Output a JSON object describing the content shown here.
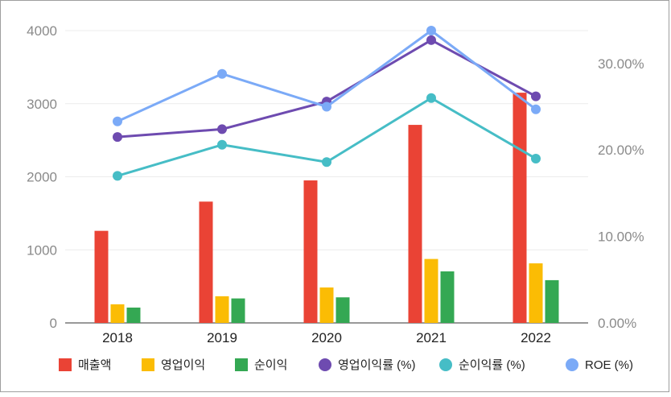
{
  "chart_data": {
    "type": "bar+line",
    "categories": [
      "2018",
      "2019",
      "2020",
      "2021",
      "2022"
    ],
    "bar_series": [
      {
        "name": "매출액",
        "color": "#ea4335",
        "values": [
          1260,
          1660,
          1950,
          2710,
          3150
        ]
      },
      {
        "name": "영업이익",
        "color": "#fbbc04",
        "values": [
          255,
          365,
          485,
          875,
          815
        ]
      },
      {
        "name": "순이익",
        "color": "#34a853",
        "values": [
          210,
          335,
          350,
          705,
          585
        ]
      }
    ],
    "line_series": [
      {
        "name": "영업이익률 (%)",
        "color": "#6e4bb0",
        "values": [
          21.5,
          22.4,
          25.6,
          32.7,
          26.2
        ]
      },
      {
        "name": "순이익률 (%)",
        "color": "#46bdc6",
        "values": [
          17.0,
          20.6,
          18.6,
          26.0,
          19.0
        ]
      },
      {
        "name": "ROE (%)",
        "color": "#7baaf7",
        "values": [
          23.3,
          28.8,
          25.0,
          33.8,
          24.7
        ]
      }
    ],
    "y_left": {
      "ticks": [
        "0",
        "1000",
        "2000",
        "3000",
        "4000"
      ],
      "range": [
        0,
        4000
      ]
    },
    "y_right": {
      "ticks": [
        "0.00%",
        "10.00%",
        "20.00%",
        "30.00%"
      ],
      "range": [
        0,
        33.8
      ]
    },
    "legend_position": "bottom",
    "grid": true
  }
}
